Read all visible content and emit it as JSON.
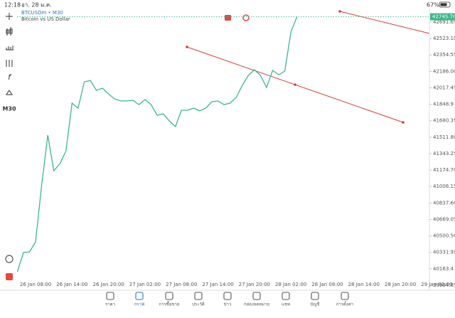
{
  "status_bar": {
    "time": "12:18",
    "date": "อา. 28 ม.ค.",
    "battery": "67%"
  },
  "toolbar": {
    "timeframe": "M30"
  },
  "chart_data": {
    "type": "line",
    "title": "BTCUSDm • M30",
    "subtitle": "Bitcoin vs US Dollar",
    "categories": [
      null,
      null,
      null,
      "26 Jan 08:00",
      null,
      null,
      null,
      null,
      null,
      "26 Jan 14:00",
      null,
      null,
      null,
      null,
      null,
      "26 Jan 20:00",
      null,
      null,
      null,
      null,
      null,
      "27 Jan 02:00",
      null,
      null,
      null,
      null,
      null,
      "27 Jan 08:00",
      null,
      null,
      null,
      null,
      null,
      "27 Jan 14:00",
      null,
      null,
      null,
      null,
      null,
      "27 Jan 20:00",
      null,
      null,
      null,
      null,
      null,
      "28 Jan 02:00",
      null,
      null,
      null,
      null,
      null,
      "28 Jan 08:00",
      null,
      null,
      null,
      null,
      null,
      "28 Jan 14:00",
      null,
      null,
      null,
      null,
      null,
      "28 Jan 20:00",
      null,
      null,
      null,
      null,
      null,
      "29 Jan 02:00",
      null,
      null
    ],
    "series": [
      {
        "color": "#3cb88a",
        "values": [
          40133,
          40330,
          40337,
          40439,
          41023,
          41533,
          41168,
          41241,
          41372,
          41861,
          41810,
          42079,
          42094,
          41992,
          42014,
          41955,
          41904,
          41883,
          41883,
          41890,
          41846,
          41897,
          41846,
          41737,
          41751,
          41679,
          41620,
          41788,
          41788,
          41810,
          41781,
          41810,
          41875,
          41883,
          41846,
          41861,
          41919,
          42043,
          42145,
          42203,
          42145,
          42021,
          42196,
          42152,
          42189,
          42590,
          42745.7,
          null,
          null,
          null,
          null,
          null,
          null,
          null,
          null,
          null,
          null,
          null,
          null,
          null,
          null,
          null,
          null,
          null,
          null,
          null,
          null,
          null,
          null,
          null,
          null,
          null
        ]
      }
    ],
    "current_price": {
      "value": 42745.7,
      "label": "42745.70",
      "color": "#3cb88a"
    },
    "ylim": [
      39943.8,
      42786.4
    ],
    "yticks": [
      42691.65,
      {
        "value": 42523.1,
        "label": "42523.10"
      },
      42354.55,
      {
        "value": 42186,
        "label": "42186.00"
      },
      42017.45,
      41848.9,
      41680.35,
      {
        "value": 41511.8,
        "label": "41511.80"
      },
      41343.25,
      {
        "value": 41174.7,
        "label": "41174.70"
      },
      41006.15,
      {
        "value": 40837.6,
        "label": "40837.60"
      },
      40669.05,
      {
        "value": 40500.5,
        "label": "40500.50"
      },
      40331.95,
      40163.4,
      39994.85
    ],
    "grid": false
  },
  "nav": {
    "items": [
      "ราคา",
      "กราฟ",
      "การซื้อขาย",
      "ประวัติ",
      "ข่าว",
      "กล่องจดหมาย",
      "แชท",
      "บัญชี",
      "การตั้งค่า"
    ]
  }
}
